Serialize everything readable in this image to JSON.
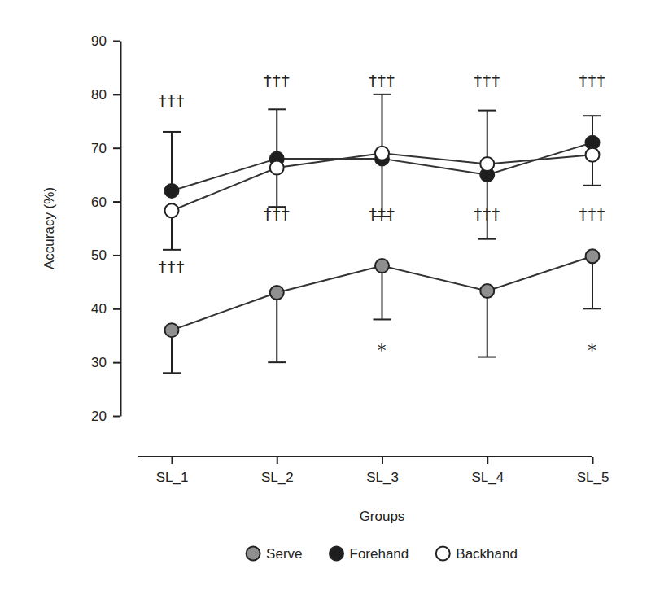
{
  "chart_data": {
    "type": "line",
    "x_label": "Groups",
    "y_label": "Accuracy (%)",
    "categories": [
      "SL_1",
      "SL_2",
      "SL_3",
      "SL_4",
      "SL_5"
    ],
    "ylim": [
      20,
      90
    ],
    "yticks": [
      20,
      30,
      40,
      50,
      60,
      70,
      80,
      90
    ],
    "grid": false,
    "legend": "bottom",
    "series": [
      {
        "name": "Serve",
        "color": "#8f8f8f",
        "marker": "circle",
        "line_style": "solid",
        "values": [
          36,
          43,
          48,
          43.3,
          49.8
        ],
        "error_minus": [
          8,
          13,
          10,
          12.3,
          9.8
        ]
      },
      {
        "name": "Forehand",
        "color": "#1e1e1e",
        "marker": "circle",
        "line_style": "solid",
        "values": [
          62,
          68,
          68,
          65,
          71
        ],
        "error_plus": [
          11,
          9.2,
          12,
          12,
          5
        ]
      },
      {
        "name": "Backhand",
        "color": "#ffffff",
        "marker": "circle",
        "line_style": "solid",
        "values": [
          58.3,
          66.3,
          69,
          67,
          68.7
        ],
        "error_minus": [
          7.3,
          7.3,
          11.8,
          14,
          5.7
        ]
      }
    ],
    "annotations": [
      {
        "text": "†††",
        "category": "SL_1",
        "y": 78.5
      },
      {
        "text": "†††",
        "category": "SL_2",
        "y": 82.4
      },
      {
        "text": "†††",
        "category": "SL_3",
        "y": 82.4
      },
      {
        "text": "†††",
        "category": "SL_4",
        "y": 82.4
      },
      {
        "text": "†††",
        "category": "SL_5",
        "y": 82.4
      },
      {
        "text": "†††",
        "category": "SL_1",
        "y": 47.5
      },
      {
        "text": "†††",
        "category": "SL_2",
        "y": 57.4
      },
      {
        "text": "†††",
        "category": "SL_3",
        "y": 57.4
      },
      {
        "text": "†††",
        "category": "SL_4",
        "y": 57.4
      },
      {
        "text": "†††",
        "category": "SL_5",
        "y": 57.4
      },
      {
        "text": "*",
        "category": "SL_3",
        "y": 32
      },
      {
        "text": "*",
        "category": "SL_5",
        "y": 32
      }
    ]
  }
}
